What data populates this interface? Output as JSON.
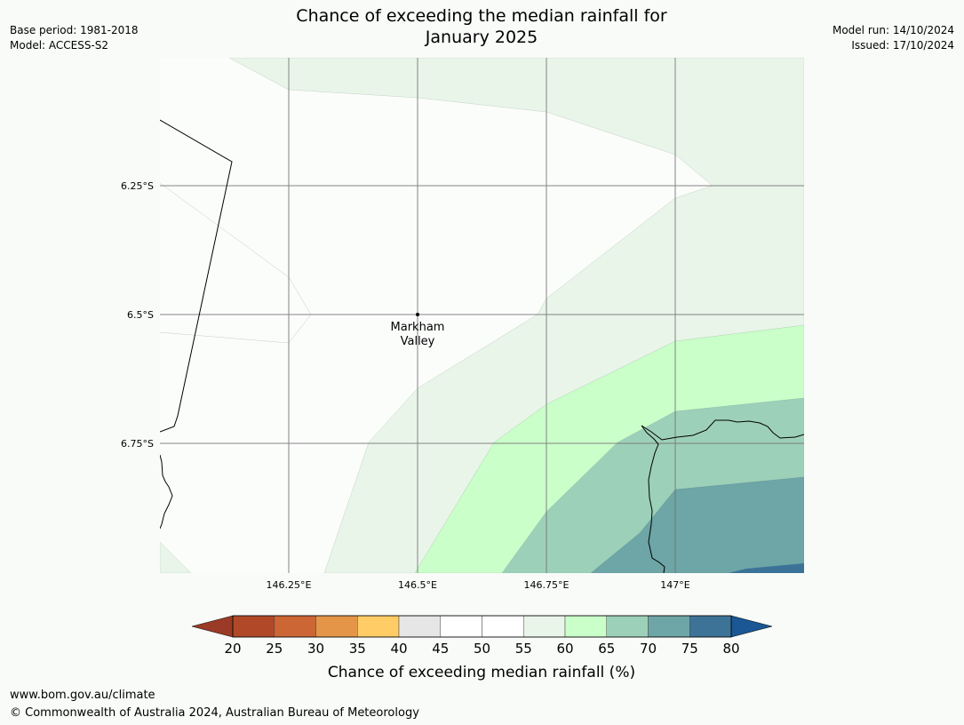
{
  "header": {
    "title_line1": "Chance of exceeding the median rainfall for",
    "title_line2": "January 2025",
    "base_period": "Base period: 1981-2018",
    "model": "Model: ACCESS-S2",
    "model_run": "Model run: 14/10/2024",
    "issued": "Issued: 17/10/2024"
  },
  "map": {
    "lat_labels": [
      "6.25°S",
      "6.5°S",
      "6.75°S"
    ],
    "lon_labels": [
      "146.25°E",
      "146.5°E",
      "146.75°E",
      "147°E"
    ],
    "place": {
      "name_line1": "Markham",
      "name_line2": "Valley"
    },
    "zone_colors": {
      "band_55_60": "#eaf5ea",
      "band_60_65": "#caffca",
      "band_65_70": "#9dd0b9",
      "band_70_75": "#6ea5a6",
      "band_75_80": "#3b7398",
      "background_50_55": "#fbfdfb"
    }
  },
  "legend": {
    "ticks": [
      "20",
      "25",
      "30",
      "35",
      "40",
      "45",
      "50",
      "55",
      "60",
      "65",
      "70",
      "75",
      "80"
    ],
    "colors": [
      "#b14929",
      "#cc6634",
      "#e49548",
      "#ffcc66",
      "#e7e6e6",
      "#ffffff",
      "#ffffff",
      "#eaf5ea",
      "#caffca",
      "#9dd0b9",
      "#6ea5a6",
      "#3e7398"
    ],
    "low_extend_color": "#9b3a26",
    "high_extend_color": "#1a5794",
    "label": "Chance of exceeding median rainfall (%)"
  },
  "footer": {
    "url": "www.bom.gov.au/climate",
    "copyright": "© Commonwealth of Australia 2024, Australian Bureau of Meteorology"
  }
}
